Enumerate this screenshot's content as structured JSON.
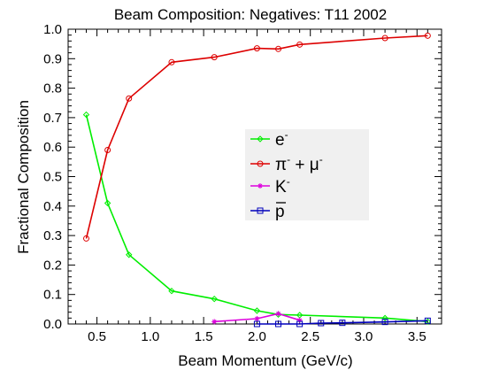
{
  "chart_data": {
    "type": "line",
    "title": "Beam Composition: Negatives: T11 2002",
    "xlabel": "Beam Momentum (GeV/c)",
    "ylabel": "Fractional Composition",
    "xlim": [
      0.23,
      3.73
    ],
    "ylim": [
      0.0,
      1.0
    ],
    "xticks": [
      "0.5",
      "1.0",
      "1.5",
      "2.0",
      "2.5",
      "3.0",
      "3.5"
    ],
    "xtick_values": [
      0.5,
      1.0,
      1.5,
      2.0,
      2.5,
      3.0,
      3.5
    ],
    "yticks": [
      "0.0",
      "0.1",
      "0.2",
      "0.3",
      "0.4",
      "0.5",
      "0.6",
      "0.7",
      "0.8",
      "0.9",
      "1.0"
    ],
    "ytick_values": [
      0.0,
      0.1,
      0.2,
      0.3,
      0.4,
      0.5,
      0.6,
      0.7,
      0.8,
      0.9,
      1.0
    ],
    "grid": false,
    "legend_position": "center-right",
    "series": [
      {
        "name": "e⁻",
        "legend": {
          "base": "e",
          "sup": "-",
          "tail": "",
          "tail_sup": "",
          "overline": false
        },
        "color": "#00ee00",
        "marker": "diamond",
        "x": [
          0.4,
          0.6,
          0.8,
          1.2,
          1.6,
          2.0,
          2.2,
          2.4,
          3.2,
          3.6
        ],
        "y": [
          0.71,
          0.41,
          0.235,
          0.112,
          0.085,
          0.045,
          0.032,
          0.03,
          0.02,
          0.008
        ]
      },
      {
        "name": "π⁻ + μ⁻",
        "legend": {
          "base": "π",
          "sup": "-",
          "tail": " + μ",
          "tail_sup": "-",
          "overline": false
        },
        "color": "#dd0000",
        "marker": "circle",
        "x": [
          0.4,
          0.6,
          0.8,
          1.2,
          1.6,
          2.0,
          2.2,
          2.4,
          3.2,
          3.6
        ],
        "y": [
          0.29,
          0.59,
          0.765,
          0.888,
          0.905,
          0.935,
          0.933,
          0.948,
          0.97,
          0.978
        ]
      },
      {
        "name": "K⁻",
        "legend": {
          "base": "K",
          "sup": "-",
          "tail": "",
          "tail_sup": "",
          "overline": false
        },
        "color": "#dd00dd",
        "marker": "star",
        "x": [
          1.6,
          2.0,
          2.2,
          2.4
        ],
        "y": [
          0.008,
          0.018,
          0.035,
          0.013
        ]
      },
      {
        "name": "p̄",
        "legend": {
          "base": "p",
          "sup": "",
          "tail": "",
          "tail_sup": "",
          "overline": true
        },
        "color": "#0000bb",
        "marker": "square",
        "x": [
          2.0,
          2.2,
          2.4,
          2.6,
          2.8,
          3.2,
          3.6
        ],
        "y": [
          0.0,
          0.0,
          0.0,
          0.003,
          0.004,
          0.007,
          0.011
        ]
      }
    ]
  }
}
